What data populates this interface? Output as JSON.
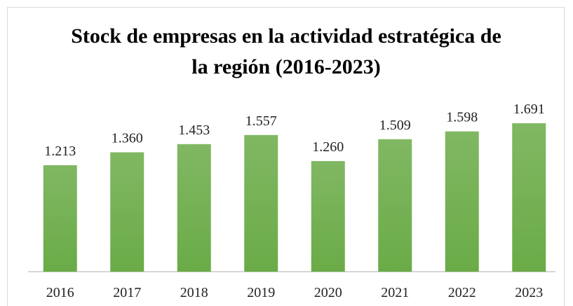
{
  "chart_data": {
    "type": "bar",
    "title": "Stock de empresas en la actividad estratégica de la región (2016-2023)",
    "categories": [
      "2016",
      "2017",
      "2018",
      "2019",
      "2020",
      "2021",
      "2022",
      "2023"
    ],
    "values": [
      1213,
      1360,
      1453,
      1557,
      1260,
      1509,
      1598,
      1691
    ],
    "value_labels": [
      "1.213",
      "1.360",
      "1.453",
      "1.557",
      "1.260",
      "1.509",
      "1.598",
      "1.691"
    ],
    "color": "#6aab47"
  }
}
